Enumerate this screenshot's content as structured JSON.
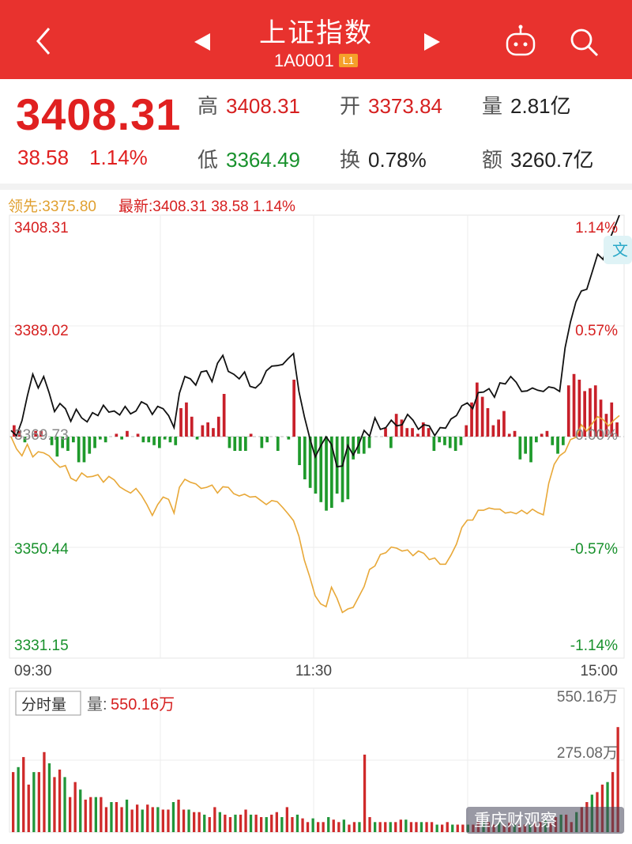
{
  "header": {
    "title": "上证指数",
    "code": "1A0001",
    "level_badge": "L1",
    "icons": [
      "back-arrow-icon",
      "prev-triangle-icon",
      "next-triangle-icon",
      "robot-icon",
      "search-icon"
    ]
  },
  "quote": {
    "price": "3408.31",
    "change": "38.58",
    "change_pct": "1.14%",
    "high_label": "高",
    "high": "3408.31",
    "open_label": "开",
    "open": "3373.84",
    "volume_label": "量",
    "volume": "2.81亿",
    "low_label": "低",
    "low": "3364.49",
    "turnover_label": "换",
    "turnover": "0.78%",
    "amount_label": "额",
    "amount": "3260.7亿"
  },
  "info": {
    "lead": "领先:3375.80",
    "latest": "最新:3408.31  38.58  1.14%"
  },
  "chart_data": [
    {
      "type": "line",
      "title": "",
      "xlabel": "",
      "ylabel": "",
      "x_ticks": [
        "09:30",
        "11:30",
        "15:00"
      ],
      "y_ticks_left": [
        "3408.31",
        "3389.02",
        "3369.73",
        "3350.44",
        "3331.15"
      ],
      "y_ticks_right": [
        "1.14%",
        "0.57%",
        "0.00%",
        "-0.57%",
        "-1.14%"
      ],
      "ylim": [
        3331.15,
        3408.31
      ],
      "prev_close": 3369.73,
      "side_tag": "文",
      "series": [
        {
          "color": "#111111",
          "values": [
            3370.8,
            3369.9,
            3372.5,
            3376.8,
            3380.6,
            3378.2,
            3380.2,
            3377.4,
            3374.1,
            3375.5,
            3374.6,
            3372.4,
            3374.5,
            3373.0,
            3372.3,
            3373.9,
            3373.4,
            3375.2,
            3374.0,
            3374.2,
            3373.5,
            3375.0,
            3373.7,
            3374.2,
            3375.8,
            3375.3,
            3373.6,
            3375.0,
            3374.6,
            3373.4,
            3371.3,
            3377.3,
            3380.2,
            3379.8,
            3378.7,
            3381.0,
            3381.2,
            3379.3,
            3382.5,
            3383.9,
            3381.1,
            3380.6,
            3379.8,
            3381.0,
            3378.5,
            3378.2,
            3379.1,
            3381.2,
            3382.0,
            3382.1,
            3382.3,
            3383.3,
            3384.2,
            3377.6,
            3373.2,
            3369.5,
            3366.2,
            3368.1,
            3369.7,
            3368.4,
            3364.5,
            3364.6,
            3368.2,
            3366.5,
            3368.3,
            3370.8,
            3369.8,
            3373.0,
            3371.0,
            3371.3,
            3372.6,
            3371.6,
            3371.8,
            3373.6,
            3372.6,
            3371.0,
            3371.8,
            3371.6,
            3369.9,
            3371.3,
            3371.2,
            3372.8,
            3373.4,
            3375.1,
            3375.6,
            3374.6,
            3377.4,
            3377.5,
            3378.1,
            3376.6,
            3379.1,
            3378.9,
            3380.2,
            3379.2,
            3377.6,
            3377.7,
            3378.2,
            3377.8,
            3377.6,
            3378.4,
            3378.2,
            3377.6,
            3385.2,
            3389.7,
            3393.2,
            3395.1,
            3395.4,
            3398.4,
            3401.5,
            3400.6,
            3403.6,
            3405.9,
            3408.3
          ]
        },
        {
          "color": "#e8a838",
          "values": [
            3369.7,
            3367.6,
            3366.4,
            3368.4,
            3366.2,
            3367.1,
            3366.9,
            3366.4,
            3365.3,
            3364.4,
            3364.7,
            3362.5,
            3362.0,
            3363.4,
            3362.7,
            3362.8,
            3363.1,
            3361.8,
            3362.8,
            3362.2,
            3361.0,
            3360.4,
            3359.9,
            3360.7,
            3359.5,
            3357.9,
            3356.0,
            3357.9,
            3359.2,
            3358.8,
            3356.4,
            3360.9,
            3362.3,
            3361.8,
            3361.5,
            3360.7,
            3360.9,
            3361.3,
            3359.9,
            3361.0,
            3360.9,
            3359.8,
            3359.4,
            3359.7,
            3359.2,
            3359.3,
            3358.6,
            3357.9,
            3358.6,
            3358.4,
            3357.4,
            3356.3,
            3355.1,
            3352.4,
            3348.2,
            3345.3,
            3342.0,
            3340.6,
            3340.1,
            3343.5,
            3341.6,
            3339.1,
            3339.7,
            3340.0,
            3341.8,
            3343.6,
            3346.6,
            3347.2,
            3349.2,
            3349.5,
            3350.5,
            3350.3,
            3349.8,
            3350.0,
            3349.0,
            3349.8,
            3349.4,
            3348.3,
            3348.6,
            3347.5,
            3347.5,
            3349.1,
            3351.0,
            3353.9,
            3355.2,
            3355.2,
            3356.9,
            3356.9,
            3357.3,
            3357.1,
            3357.1,
            3356.4,
            3356.6,
            3356.3,
            3356.9,
            3356.3,
            3357.1,
            3356.5,
            3356.1,
            3361.6,
            3364.9,
            3366.4,
            3367.1,
            3369.2,
            3369.6,
            3371.8,
            3370.7,
            3372.0,
            3373.2,
            3372.7,
            3371.6,
            3372.6,
            3373.4
          ]
        }
      ],
      "bars": [
        4,
        2,
        -2,
        0,
        2,
        2,
        0,
        -3,
        -7,
        -4,
        -5,
        -2,
        -9,
        -9,
        -6,
        -4,
        -1,
        -2,
        0,
        1,
        -1,
        2,
        0,
        1,
        -2,
        -2,
        -3,
        -4,
        -1,
        -2,
        -3,
        10,
        12,
        7,
        -1,
        4,
        5,
        3,
        7,
        15,
        -4,
        -5,
        -5,
        -5,
        1,
        0,
        -4,
        -2,
        0,
        -5,
        0,
        -1,
        20,
        -10,
        -15,
        -18,
        -20,
        -23,
        -26,
        -25,
        -20,
        -23,
        -22,
        -8,
        -6,
        -6,
        -4,
        0,
        0,
        3,
        -4,
        8,
        6,
        3,
        3,
        1,
        5,
        3,
        -5,
        -2,
        -3,
        -4,
        -5,
        -3,
        4,
        12,
        19,
        14,
        10,
        4,
        6,
        9,
        1,
        2,
        -8,
        -6,
        -9,
        -2,
        1,
        2,
        -3,
        -6,
        -3,
        18,
        22,
        20,
        16,
        17,
        18,
        13,
        8,
        12,
        5
      ]
    },
    {
      "type": "bar",
      "title": "分时量",
      "volume_label": "量:",
      "volume_value": "550.16万",
      "y_ticks": [
        "550.16万",
        "275.08万"
      ],
      "ylim": [
        0,
        550.16
      ],
      "values": [
        240,
        260,
        300,
        190,
        240,
        240,
        320,
        275,
        220,
        250,
        220,
        140,
        200,
        170,
        130,
        140,
        140,
        140,
        100,
        120,
        120,
        100,
        130,
        90,
        110,
        90,
        110,
        100,
        100,
        90,
        90,
        120,
        130,
        90,
        90,
        80,
        80,
        70,
        60,
        100,
        80,
        70,
        60,
        70,
        70,
        90,
        70,
        70,
        60,
        60,
        70,
        80,
        60,
        100,
        60,
        70,
        55,
        40,
        55,
        40,
        40,
        60,
        50,
        40,
        50,
        30,
        40,
        40,
        310,
        60,
        40,
        40,
        40,
        40,
        40,
        50,
        50,
        40,
        40,
        40,
        40,
        40,
        30,
        30,
        40,
        30,
        30,
        30,
        30,
        30,
        40,
        40,
        40,
        30,
        40,
        30,
        40,
        30,
        30,
        30,
        30,
        40,
        40,
        50,
        40,
        60,
        70,
        70,
        40,
        80,
        100,
        120,
        150,
        160,
        190,
        200,
        240,
        420
      ]
    }
  ],
  "watermark": "重庆财观察"
}
